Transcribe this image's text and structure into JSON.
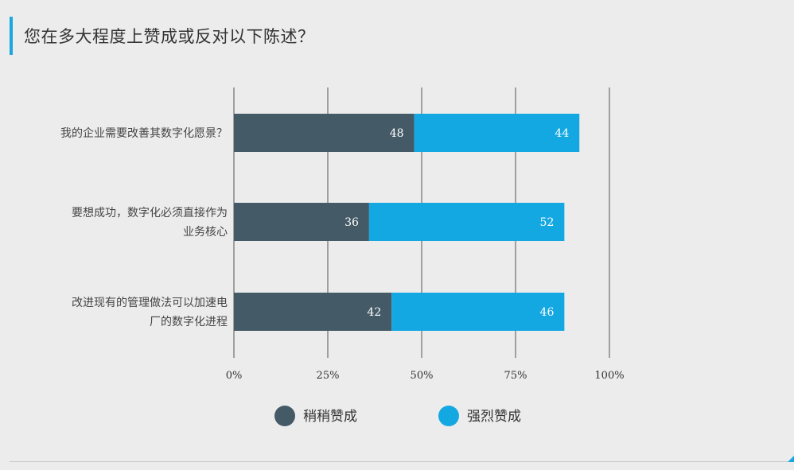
{
  "title": "您在多大程度上赞成或反对以下陈述？",
  "chart_data": {
    "type": "bar",
    "orientation": "horizontal",
    "stacked": true,
    "categories": [
      [
        "我的企业需要改善其数字化愿景？"
      ],
      [
        "要想成功，数字化必须直接作为",
        "业务核心"
      ],
      [
        "改进现有的管理做法可以加速电",
        "厂的数字化进程"
      ]
    ],
    "series": [
      {
        "name": "稍稍赞成",
        "values": [
          48,
          36,
          42
        ],
        "color": "#455a67"
      },
      {
        "name": "强烈赞成",
        "values": [
          44,
          52,
          46
        ],
        "color": "#14a8e3"
      }
    ],
    "xlim": [
      0,
      100
    ],
    "xticks": [
      "0%",
      "25%",
      "50%",
      "75%",
      "100%"
    ],
    "xtick_values": [
      0,
      25,
      50,
      75,
      100
    ],
    "grid": true,
    "legend": "bottom"
  }
}
